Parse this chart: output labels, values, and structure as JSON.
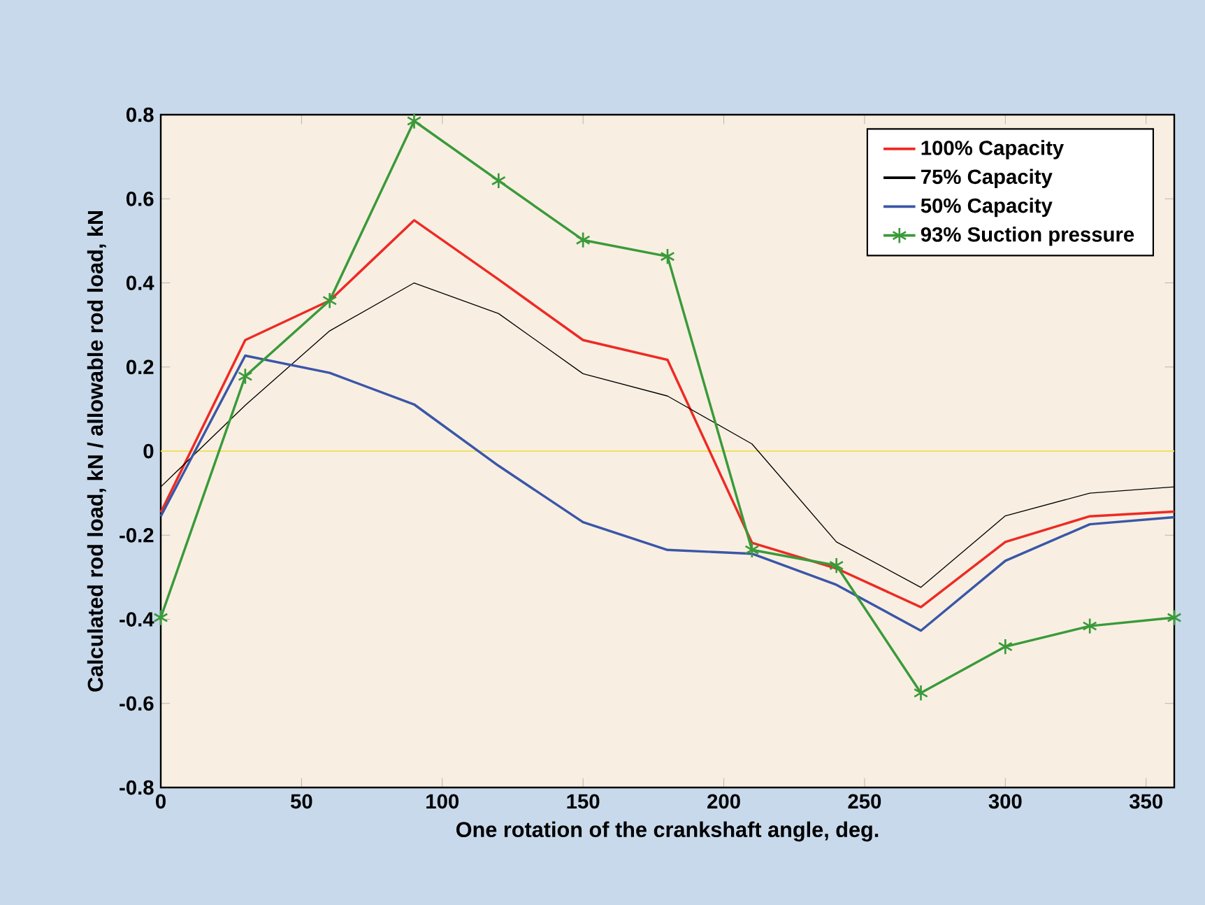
{
  "chart_data": {
    "type": "line",
    "xlabel": "One rotation of the crankshaft angle, deg.",
    "ylabel": "Calculated rod load, kN / allowable rod load, kN",
    "x": [
      0,
      30,
      60,
      90,
      120,
      150,
      180,
      210,
      240,
      270,
      300,
      330,
      360
    ],
    "series": [
      {
        "name": "100% Capacity",
        "color": "#ee2a24",
        "marker": "none",
        "values": [
          -0.146,
          0.264,
          0.358,
          0.549,
          0.408,
          0.264,
          0.217,
          -0.218,
          -0.279,
          -0.371,
          -0.216,
          -0.155,
          -0.144
        ]
      },
      {
        "name": "75% Capacity",
        "color": "#000000",
        "marker": "none",
        "values": [
          -0.085,
          0.109,
          0.286,
          0.4,
          0.327,
          0.184,
          0.131,
          0.017,
          -0.216,
          -0.324,
          -0.154,
          -0.1,
          -0.085
        ]
      },
      {
        "name": "50% Capacity",
        "color": "#3a56a8",
        "marker": "none",
        "values": [
          -0.155,
          0.227,
          0.186,
          0.111,
          -0.035,
          -0.169,
          -0.235,
          -0.244,
          -0.318,
          -0.427,
          -0.261,
          -0.174,
          -0.157
        ]
      },
      {
        "name": "93% Suction pressure",
        "color": "#3a9a3a",
        "marker": "cross",
        "values": [
          -0.396,
          0.178,
          0.358,
          0.785,
          0.643,
          0.502,
          0.463,
          -0.235,
          -0.272,
          -0.575,
          -0.465,
          -0.416,
          -0.396
        ]
      }
    ],
    "xlim": [
      0,
      360
    ],
    "xticks": [
      0,
      50,
      100,
      150,
      200,
      250,
      300,
      350
    ],
    "ylim": [
      -0.8,
      0.8
    ],
    "yticks": [
      -0.8,
      -0.6,
      -0.4,
      -0.2,
      0,
      0.2,
      0.4,
      0.6,
      0.8
    ],
    "ref_lines": [
      {
        "axis": "y",
        "value": 0,
        "color": "#f0e060"
      }
    ],
    "grid": false,
    "legend": "top right",
    "line_style": "solid"
  }
}
